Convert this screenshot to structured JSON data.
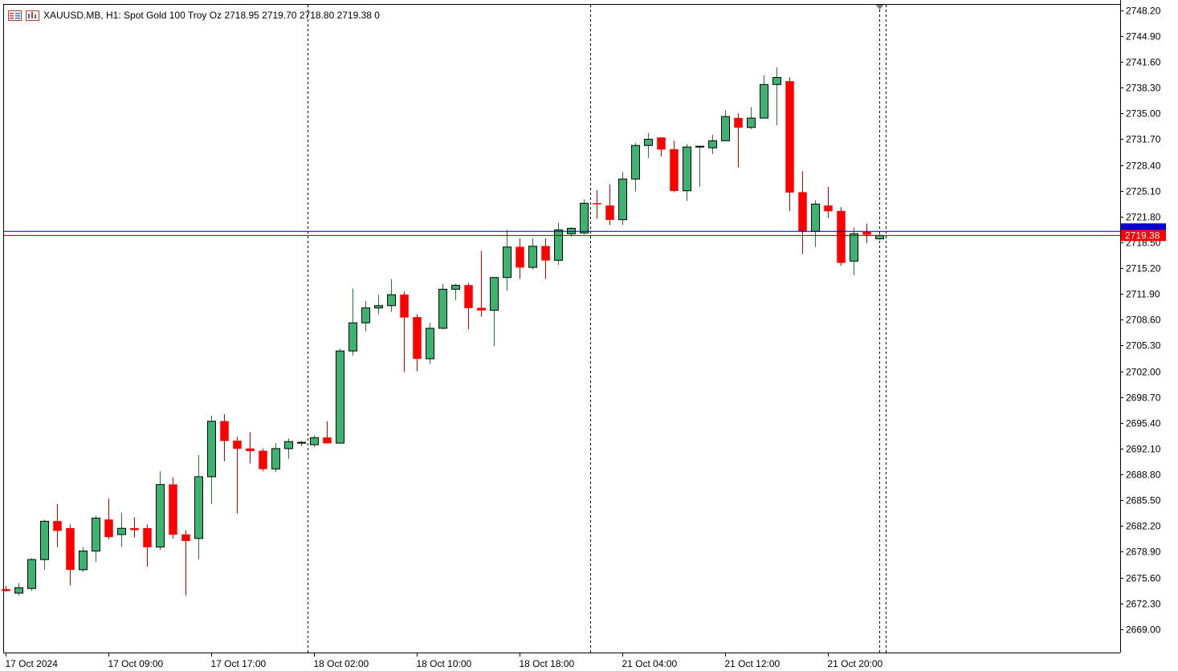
{
  "header": {
    "symbol": "XAUUSD.MB, H1:",
    "description": "Spot Gold 100 Troy Oz",
    "ohlc": "2718.95 2719.70 2718.80 2719.38",
    "volume": "0",
    "icons": [
      "symbols-list-icon",
      "chart-window-icon"
    ]
  },
  "colors": {
    "bull": "#3cb371",
    "bear": "#ff0000",
    "wick": "#000000",
    "bid_line": "#8b0000",
    "ask_line": "#000080",
    "price_label_bg": "#ff0000",
    "ask_label_bg": "#0000cc"
  },
  "chart_data": {
    "type": "candlestick",
    "symbol": "XAUUSD.MB",
    "timeframe": "H1",
    "ylim": [
      2666.0,
      2748.9
    ],
    "y_ticks": [
      "2748.20",
      "2744.90",
      "2741.60",
      "2738.30",
      "2735.00",
      "2731.70",
      "2728.40",
      "2725.10",
      "2721.80",
      "2718.50",
      "2715.20",
      "2711.90",
      "2708.60",
      "2705.30",
      "2702.00",
      "2698.70",
      "2695.40",
      "2692.10",
      "2688.80",
      "2685.50",
      "2682.20",
      "2678.90",
      "2675.60",
      "2672.30",
      "2669.00"
    ],
    "x_labels": [
      "17 Oct 2024",
      "17 Oct 09:00",
      "17 Oct 17:00",
      "18 Oct 02:00",
      "18 Oct 10:00",
      "18 Oct 18:00",
      "21 Oct 04:00",
      "21 Oct 12:00",
      "21 Oct 20:00"
    ],
    "current_price": "2719.38",
    "bid": 2719.38,
    "ask": 2719.9,
    "day_separators": [
      23.5,
      45.5,
      68.5
    ],
    "candles": [
      [
        2674.1,
        2674.5,
        2673.8,
        2673.9
      ],
      [
        2673.6,
        2674.9,
        2673.3,
        2674.3
      ],
      [
        2674.2,
        2678.1,
        2673.9,
        2677.9
      ],
      [
        2677.9,
        2683.0,
        2676.6,
        2682.8
      ],
      [
        2682.8,
        2685.0,
        2679.5,
        2681.6
      ],
      [
        2681.9,
        2682.4,
        2674.6,
        2676.6
      ],
      [
        2676.6,
        2679.5,
        2676.3,
        2679.0
      ],
      [
        2679.0,
        2683.5,
        2677.6,
        2683.2
      ],
      [
        2683.0,
        2685.7,
        2680.5,
        2680.8
      ],
      [
        2681.1,
        2683.9,
        2679.5,
        2681.9
      ],
      [
        2681.9,
        2683.3,
        2680.7,
        2681.7
      ],
      [
        2681.9,
        2682.4,
        2677.0,
        2679.5
      ],
      [
        2679.5,
        2689.2,
        2679.1,
        2687.5
      ],
      [
        2687.5,
        2688.4,
        2680.6,
        2681.1
      ],
      [
        2681.1,
        2681.6,
        2673.3,
        2680.3
      ],
      [
        2680.6,
        2691.3,
        2677.9,
        2688.5
      ],
      [
        2688.5,
        2696.3,
        2685.0,
        2695.6
      ],
      [
        2695.6,
        2696.5,
        2690.5,
        2693.1
      ],
      [
        2693.1,
        2693.6,
        2683.8,
        2692.1
      ],
      [
        2692.1,
        2694.2,
        2690.2,
        2691.8
      ],
      [
        2691.8,
        2692.1,
        2689.2,
        2689.5
      ],
      [
        2689.5,
        2692.8,
        2689.1,
        2692.1
      ],
      [
        2692.1,
        2693.4,
        2690.8,
        2693.0
      ],
      [
        2692.8,
        2693.1,
        2692.4,
        2692.9
      ],
      [
        2692.6,
        2693.8,
        2692.3,
        2693.5
      ],
      [
        2693.5,
        2695.6,
        2692.9,
        2692.8
      ],
      [
        2692.8,
        2704.9,
        2692.8,
        2704.6
      ],
      [
        2704.6,
        2712.6,
        2704.0,
        2708.2
      ],
      [
        2708.2,
        2711.0,
        2707.1,
        2710.1
      ],
      [
        2710.1,
        2711.8,
        2709.3,
        2710.4
      ],
      [
        2710.4,
        2713.8,
        2709.6,
        2711.8
      ],
      [
        2711.8,
        2712.2,
        2701.9,
        2708.9
      ],
      [
        2708.9,
        2709.3,
        2702.0,
        2703.6
      ],
      [
        2703.6,
        2708.2,
        2702.9,
        2707.5
      ],
      [
        2707.5,
        2713.2,
        2707.4,
        2712.5
      ],
      [
        2712.5,
        2713.2,
        2711.1,
        2713.0
      ],
      [
        2713.0,
        2713.3,
        2707.4,
        2710.1
      ],
      [
        2710.1,
        2717.4,
        2709.0,
        2709.8
      ],
      [
        2709.8,
        2713.7,
        2705.2,
        2714.0
      ],
      [
        2714.0,
        2720.1,
        2712.3,
        2717.9
      ],
      [
        2717.9,
        2719.0,
        2713.8,
        2715.3
      ],
      [
        2715.3,
        2719.0,
        2715.0,
        2718.0
      ],
      [
        2718.0,
        2719.0,
        2713.8,
        2716.2
      ],
      [
        2716.2,
        2721.0,
        2715.6,
        2720.1
      ],
      [
        2719.6,
        2720.4,
        2719.2,
        2720.3
      ],
      [
        2719.7,
        2724.0,
        2719.5,
        2723.5
      ],
      [
        2723.5,
        2725.2,
        2721.5,
        2723.4
      ],
      [
        2723.2,
        2725.9,
        2720.7,
        2721.4
      ],
      [
        2721.4,
        2727.5,
        2720.7,
        2726.6
      ],
      [
        2726.6,
        2731.2,
        2725.0,
        2730.9
      ],
      [
        2730.9,
        2732.5,
        2729.3,
        2731.7
      ],
      [
        2731.9,
        2731.7,
        2729.5,
        2730.4
      ],
      [
        2730.4,
        2731.5,
        2724.9,
        2725.1
      ],
      [
        2725.1,
        2731.1,
        2723.8,
        2730.7
      ],
      [
        2730.7,
        2730.8,
        2725.6,
        2730.8
      ],
      [
        2730.6,
        2732.3,
        2729.8,
        2731.5
      ],
      [
        2731.5,
        2735.4,
        2731.5,
        2734.6
      ],
      [
        2734.4,
        2735.0,
        2728.1,
        2733.2
      ],
      [
        2733.2,
        2735.8,
        2733.0,
        2734.4
      ],
      [
        2734.4,
        2739.9,
        2734.4,
        2738.7
      ],
      [
        2738.7,
        2740.9,
        2733.5,
        2739.6
      ],
      [
        2739.1,
        2739.6,
        2722.5,
        2724.9
      ],
      [
        2724.9,
        2727.6,
        2717.0,
        2719.9
      ],
      [
        2719.9,
        2723.9,
        2717.9,
        2723.4
      ],
      [
        2723.2,
        2725.6,
        2721.6,
        2722.5
      ],
      [
        2722.5,
        2723.0,
        2715.5,
        2715.9
      ],
      [
        2716.1,
        2720.4,
        2714.3,
        2719.6
      ],
      [
        2719.8,
        2720.9,
        2718.4,
        2719.5
      ],
      [
        2718.95,
        2719.7,
        2718.8,
        2719.38
      ]
    ]
  }
}
